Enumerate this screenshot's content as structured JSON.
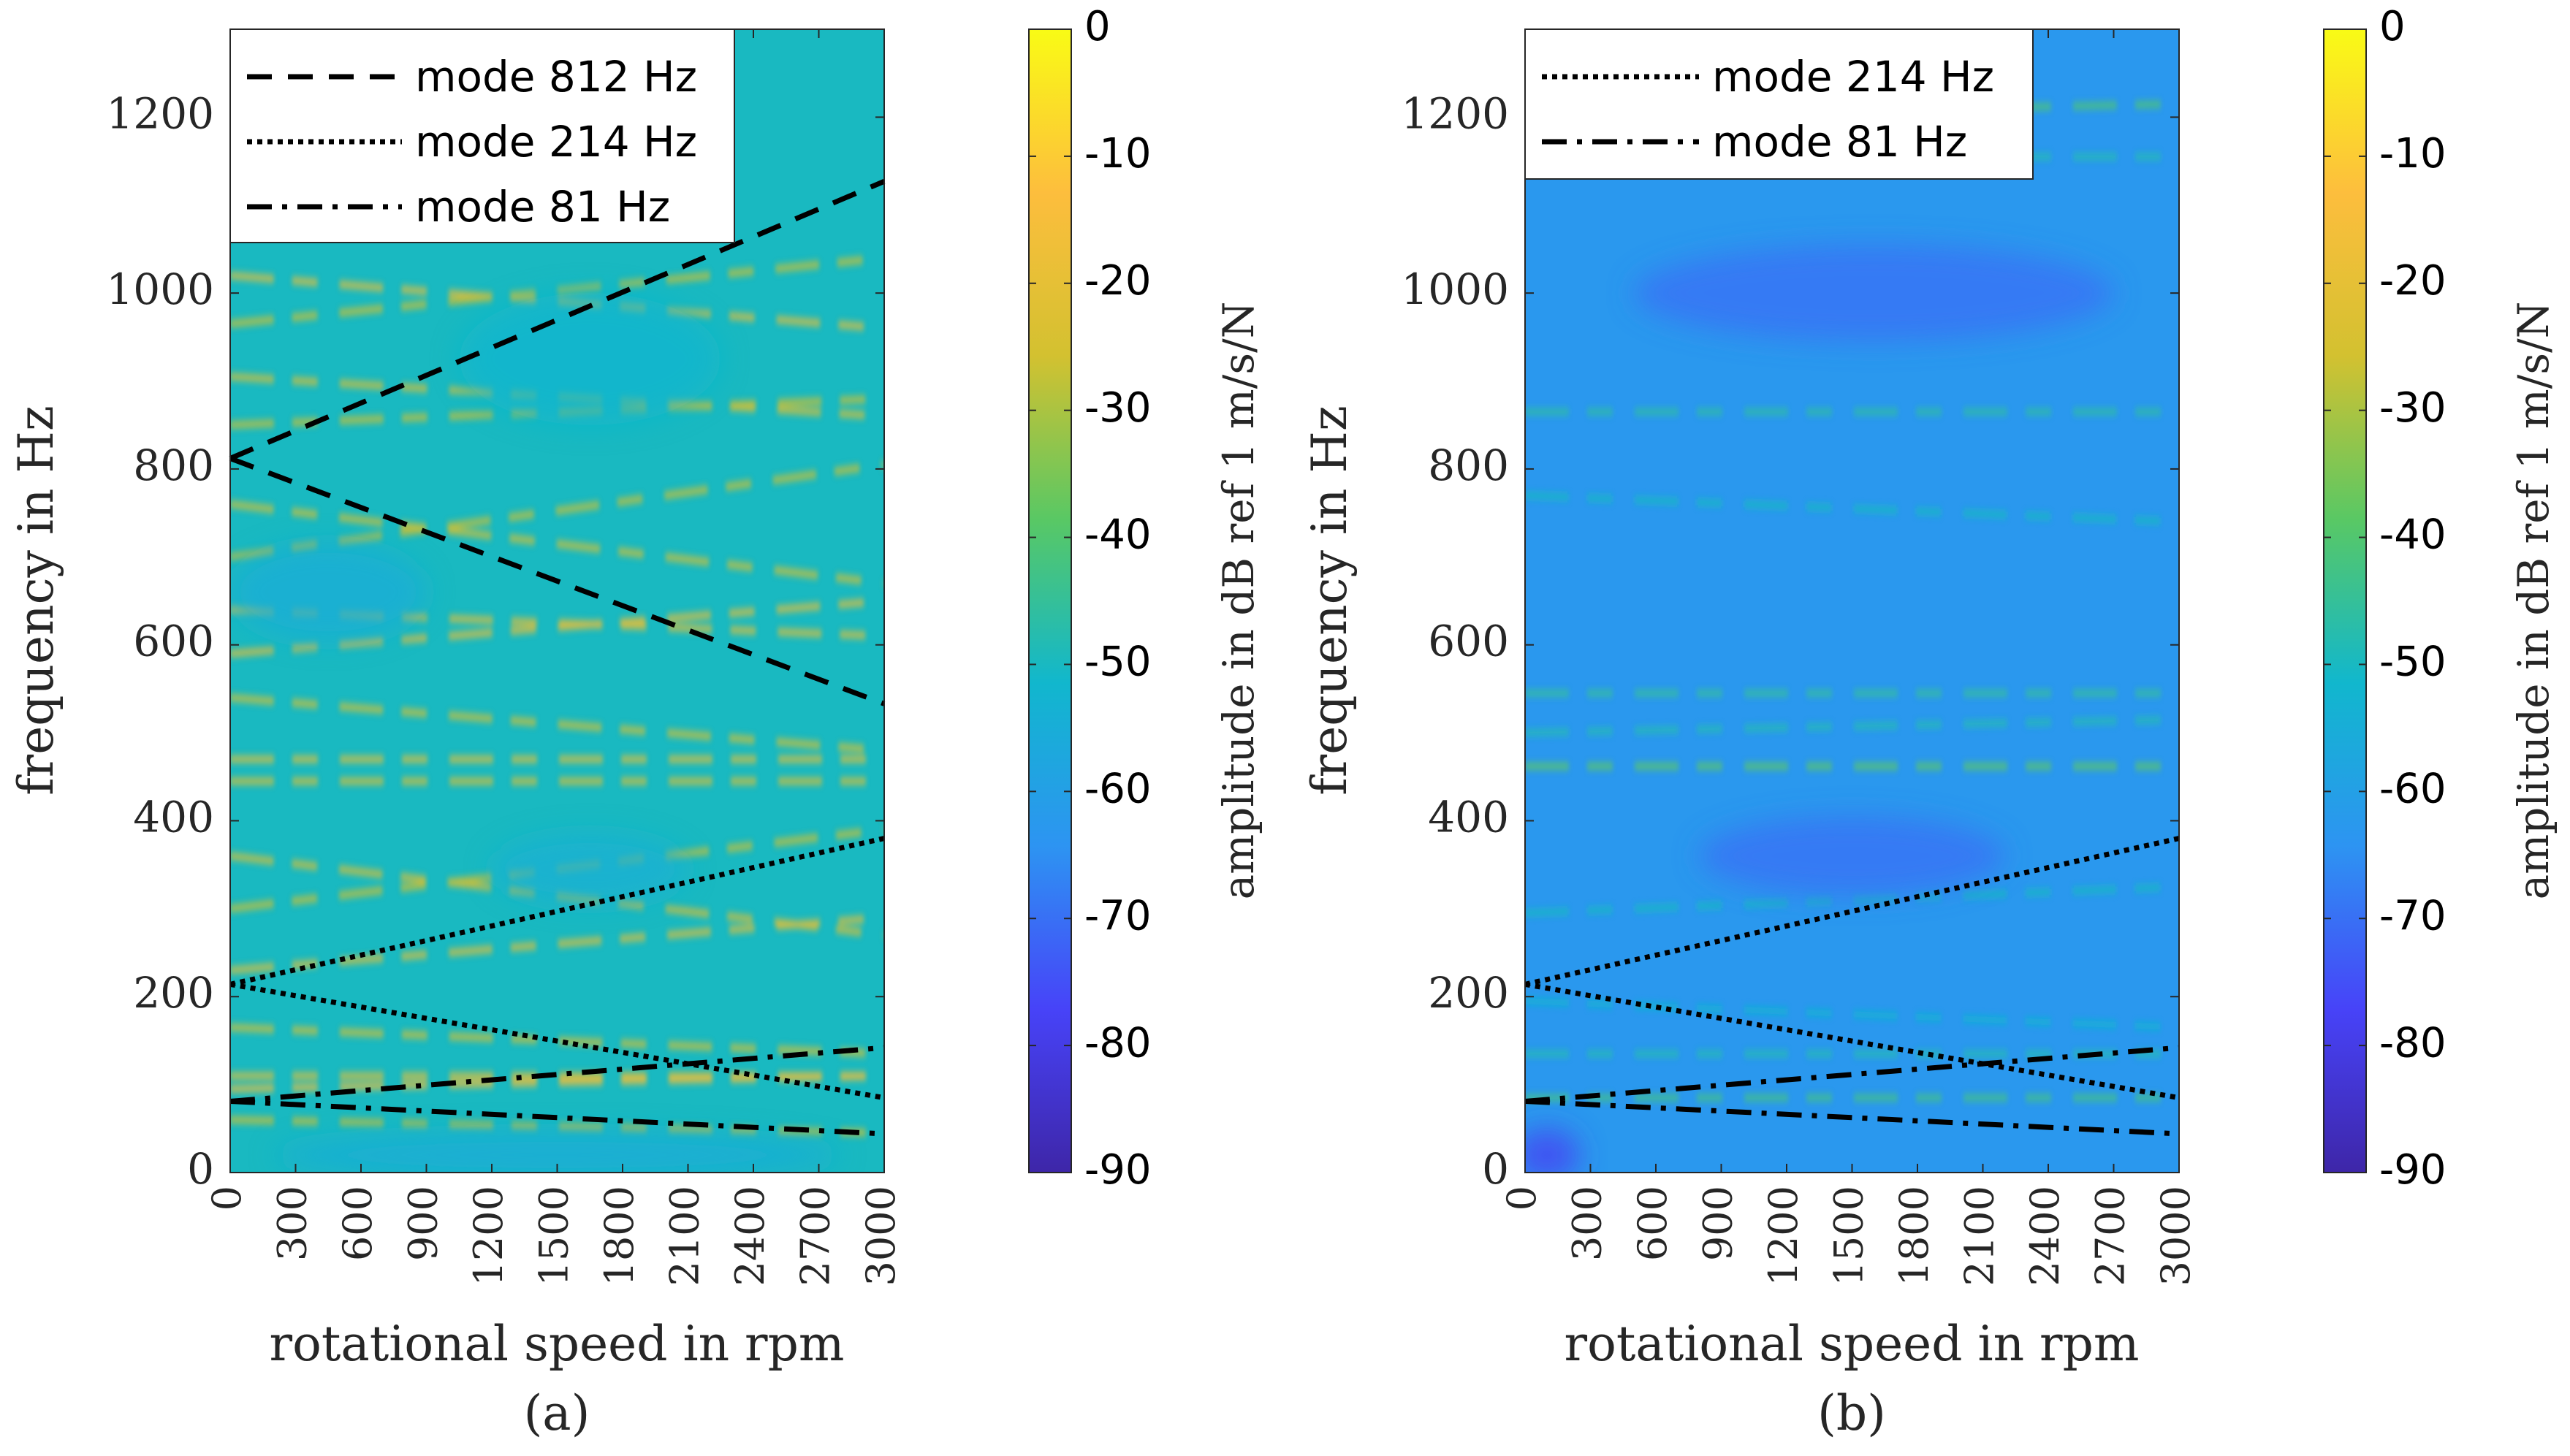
{
  "colormap": [
    "#3e26a8",
    "#4743f8",
    "#2d94f2",
    "#11b7cd",
    "#59c864",
    "#d3c130",
    "#fdbe3d",
    "#f9fb15"
  ],
  "chart_data": [
    {
      "type": "heatmap",
      "caption": "(a)",
      "xlabel": "rotational speed in rpm",
      "ylabel": "frequency in Hz",
      "xlim": [
        0,
        3000
      ],
      "ylim": [
        0,
        1300
      ],
      "xticks": [
        0,
        300,
        600,
        900,
        1200,
        1500,
        1800,
        2100,
        2400,
        2700,
        3000
      ],
      "xtick_labels": [
        "0",
        "300",
        "600",
        "900",
        "1200",
        "1500",
        "1800",
        "2100",
        "2400",
        "2700",
        "3000"
      ],
      "yticks": [
        0,
        200,
        400,
        600,
        800,
        1000,
        1200
      ],
      "ytick_labels": [
        "0",
        "200",
        "400",
        "600",
        "800",
        "1000",
        "1200"
      ],
      "colorbar": {
        "label": "amplitude in dB ref 1 m/s/N",
        "clim": [
          -90,
          0
        ],
        "ticks": [
          0,
          -10,
          -20,
          -30,
          -40,
          -50,
          -60,
          -70,
          -80,
          -90
        ],
        "tick_labels": [
          "0",
          "-10",
          "-20",
          "-30",
          "-40",
          "-50",
          "-60",
          "-70",
          "-80",
          "-90"
        ]
      },
      "legend": {
        "placement": "top-left"
      },
      "series": [
        {
          "name": "mode 812 Hz",
          "style": "dashed",
          "lines": [
            {
              "x": [
                0,
                3000
              ],
              "y": [
                812,
                1127
              ]
            },
            {
              "x": [
                0,
                3000
              ],
              "y": [
                812,
                533
              ]
            }
          ]
        },
        {
          "name": "mode 214 Hz",
          "style": "dotted",
          "lines": [
            {
              "x": [
                0,
                3000
              ],
              "y": [
                214,
                380
              ]
            },
            {
              "x": [
                0,
                3000
              ],
              "y": [
                214,
                85
              ]
            }
          ]
        },
        {
          "name": "mode 81 Hz",
          "style": "dashdot",
          "lines": [
            {
              "x": [
                0,
                3000
              ],
              "y": [
                81,
                142
              ]
            },
            {
              "x": [
                0,
                3000
              ],
              "y": [
                81,
                44
              ]
            }
          ]
        }
      ],
      "heat": {
        "base_level": -50,
        "bands": [
          {
            "y0": 1020,
            "slope": -0.02,
            "level": -18
          },
          {
            "y0": 965,
            "slope": 0.025,
            "level": -26
          },
          {
            "y0": 905,
            "slope": -0.015,
            "level": -22
          },
          {
            "y0": 850,
            "slope": 0.01,
            "level": -26
          },
          {
            "y0": 760,
            "slope": -0.03,
            "level": -24
          },
          {
            "y0": 700,
            "slope": 0.035,
            "level": -26
          },
          {
            "y0": 640,
            "slope": -0.01,
            "level": -20
          },
          {
            "y0": 590,
            "slope": 0.02,
            "level": -18
          },
          {
            "y0": 540,
            "slope": -0.02,
            "level": -24
          },
          {
            "y0": 470,
            "slope": 0.0,
            "level": -20
          },
          {
            "y0": 445,
            "slope": 0.0,
            "level": -22
          },
          {
            "y0": 360,
            "slope": -0.03,
            "level": -22
          },
          {
            "y0": 300,
            "slope": 0.03,
            "level": -26
          },
          {
            "y0": 230,
            "slope": 0.02,
            "level": -20
          },
          {
            "y0": 165,
            "slope": -0.01,
            "level": -24
          },
          {
            "y0": 110,
            "slope": 0.0,
            "level": -20
          },
          {
            "y0": 95,
            "slope": 0.005,
            "level": -16
          },
          {
            "y0": 60,
            "slope": -0.005,
            "level": -26
          }
        ],
        "calm_regions": [
          {
            "x": 450,
            "y": 660,
            "rx": 450,
            "ry": 55,
            "level": -55
          },
          {
            "x": 1650,
            "y": 925,
            "rx": 600,
            "ry": 75,
            "level": -52
          },
          {
            "x": 1650,
            "y": 345,
            "rx": 450,
            "ry": 40,
            "level": -54
          },
          {
            "x": 1500,
            "y": 20,
            "rx": 1300,
            "ry": 25,
            "level": -56
          }
        ]
      }
    },
    {
      "type": "heatmap",
      "caption": "(b)",
      "xlabel": "rotational speed in rpm",
      "ylabel": "frequency in Hz",
      "xlim": [
        0,
        3000
      ],
      "ylim": [
        0,
        1300
      ],
      "xticks": [
        0,
        300,
        600,
        900,
        1200,
        1500,
        1800,
        2100,
        2400,
        2700,
        3000
      ],
      "xtick_labels": [
        "0",
        "300",
        "600",
        "900",
        "1200",
        "1500",
        "1800",
        "2100",
        "2400",
        "2700",
        "3000"
      ],
      "yticks": [
        0,
        200,
        400,
        600,
        800,
        1000,
        1200
      ],
      "ytick_labels": [
        "0",
        "200",
        "400",
        "600",
        "800",
        "1000",
        "1200"
      ],
      "colorbar": {
        "label": "amplitude in dB ref 1 m/s/N",
        "clim": [
          -90,
          0
        ],
        "ticks": [
          0,
          -10,
          -20,
          -30,
          -40,
          -50,
          -60,
          -70,
          -80,
          -90
        ],
        "tick_labels": [
          "0",
          "-10",
          "-20",
          "-30",
          "-40",
          "-50",
          "-60",
          "-70",
          "-80",
          "-90"
        ]
      },
      "legend": {
        "placement": "top-left"
      },
      "series": [
        {
          "name": "mode 214 Hz",
          "style": "dotted",
          "lines": [
            {
              "x": [
                0,
                3000
              ],
              "y": [
                214,
                380
              ]
            },
            {
              "x": [
                0,
                3000
              ],
              "y": [
                214,
                85
              ]
            }
          ]
        },
        {
          "name": "mode 81 Hz",
          "style": "dashdot",
          "lines": [
            {
              "x": [
                0,
                3000
              ],
              "y": [
                81,
                142
              ]
            },
            {
              "x": [
                0,
                3000
              ],
              "y": [
                81,
                44
              ]
            }
          ]
        }
      ],
      "heat": {
        "base_level": -63,
        "bands": [
          {
            "y0": 1200,
            "slope": 0.005,
            "level": -40
          },
          {
            "y0": 1155,
            "slope": 0.0,
            "level": -48
          },
          {
            "y0": 865,
            "slope": 0.0,
            "level": -46
          },
          {
            "y0": 770,
            "slope": -0.01,
            "level": -50
          },
          {
            "y0": 545,
            "slope": 0.0,
            "level": -45
          },
          {
            "y0": 500,
            "slope": 0.005,
            "level": -48
          },
          {
            "y0": 462,
            "slope": 0.0,
            "level": -38
          },
          {
            "y0": 295,
            "slope": 0.01,
            "level": -50
          },
          {
            "y0": 195,
            "slope": -0.01,
            "level": -52
          },
          {
            "y0": 135,
            "slope": 0.0,
            "level": -48
          },
          {
            "y0": 85,
            "slope": 0.0,
            "level": -42
          }
        ],
        "calm_regions": [
          {
            "x": 1600,
            "y": 1000,
            "rx": 1100,
            "ry": 55,
            "level": -70
          },
          {
            "x": 1500,
            "y": 360,
            "rx": 700,
            "ry": 45,
            "level": -70
          },
          {
            "x": 100,
            "y": 20,
            "rx": 150,
            "ry": 30,
            "level": -78
          }
        ]
      }
    }
  ]
}
